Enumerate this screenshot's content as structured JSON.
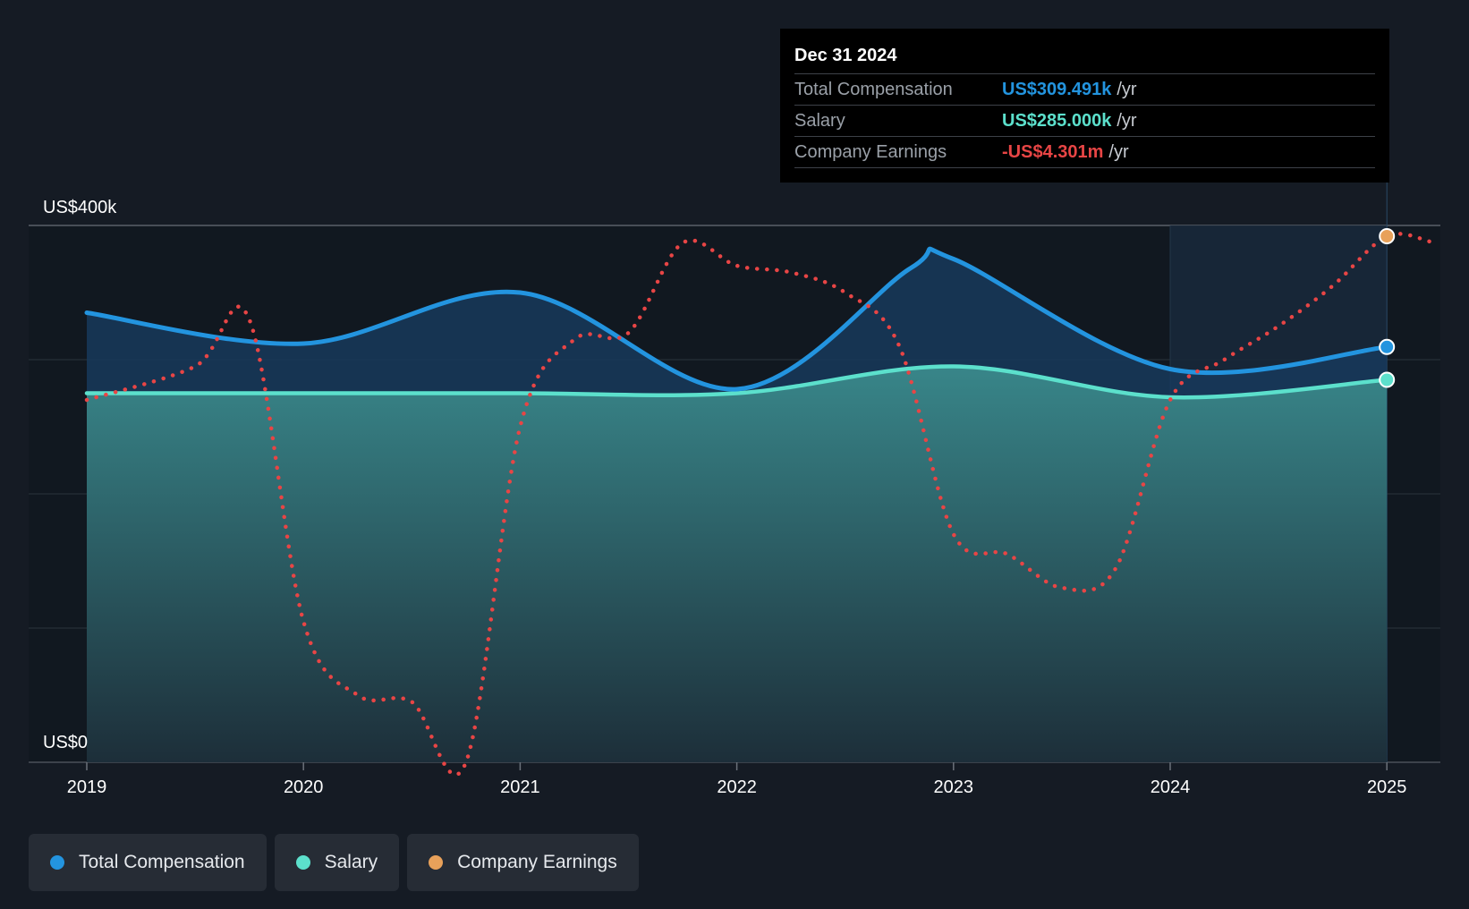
{
  "chart_data": {
    "type": "area",
    "x_ticks": [
      "2019",
      "2020",
      "2021",
      "2022",
      "2023",
      "2024",
      "2025"
    ],
    "y_axis": {
      "top_label": "US$400k",
      "bottom_label": "US$0",
      "ylim": [
        0,
        400
      ],
      "unit": "US$k"
    },
    "series": [
      {
        "name": "Total Compensation",
        "color": "#2394df",
        "points": [
          [
            2019.0,
            335
          ],
          [
            2020.0,
            312
          ],
          [
            2021.0,
            350
          ],
          [
            2022.0,
            278
          ],
          [
            2022.8,
            368
          ],
          [
            2023.0,
            375
          ],
          [
            2024.0,
            293
          ],
          [
            2025.0,
            309.491
          ]
        ]
      },
      {
        "name": "Salary",
        "color": "#5ce0cc",
        "points": [
          [
            2019.0,
            275
          ],
          [
            2020.0,
            275
          ],
          [
            2021.0,
            275
          ],
          [
            2022.0,
            275
          ],
          [
            2023.0,
            295
          ],
          [
            2024.0,
            272
          ],
          [
            2025.0,
            285
          ]
        ]
      },
      {
        "name": "Company Earnings",
        "color": "#e8a15a",
        "line_color": "#e84545",
        "dotted": true,
        "points": [
          [
            2019.0,
            270
          ],
          [
            2019.5,
            295
          ],
          [
            2019.75,
            330
          ],
          [
            2020.0,
            105
          ],
          [
            2020.25,
            50
          ],
          [
            2020.5,
            45
          ],
          [
            2020.75,
            0
          ],
          [
            2021.0,
            250
          ],
          [
            2021.25,
            315
          ],
          [
            2021.5,
            320
          ],
          [
            2021.75,
            387
          ],
          [
            2022.0,
            370
          ],
          [
            2022.25,
            365
          ],
          [
            2022.5,
            350
          ],
          [
            2022.75,
            310
          ],
          [
            2023.0,
            170
          ],
          [
            2023.25,
            155
          ],
          [
            2023.5,
            130
          ],
          [
            2023.75,
            145
          ],
          [
            2024.0,
            270
          ],
          [
            2024.25,
            300
          ],
          [
            2024.5,
            325
          ],
          [
            2024.75,
            355
          ],
          [
            2025.0,
            392
          ],
          [
            2025.2,
            388
          ]
        ]
      }
    ],
    "highlight": {
      "from": 2024.0,
      "to": 2025.0
    },
    "grid": true
  },
  "tooltip": {
    "date": "Dec 31 2024",
    "rows": [
      {
        "label": "Total Compensation",
        "value": "US$309.491k",
        "unit": "/yr",
        "color": "#2394df"
      },
      {
        "label": "Salary",
        "value": "US$285.000k",
        "unit": "/yr",
        "color": "#5ce0cc"
      },
      {
        "label": "Company Earnings",
        "value": "-US$4.301m",
        "unit": "/yr",
        "color": "#e84545"
      }
    ]
  },
  "legend": [
    {
      "label": "Total Compensation",
      "color": "#2394df"
    },
    {
      "label": "Salary",
      "color": "#5ce0cc"
    },
    {
      "label": "Company Earnings",
      "color": "#e8a15a"
    }
  ]
}
